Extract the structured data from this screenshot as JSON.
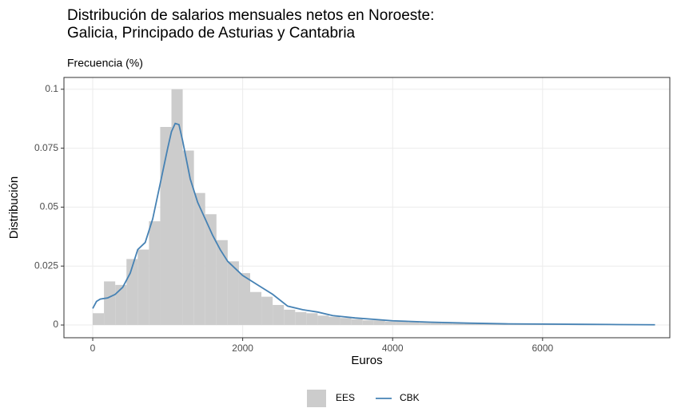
{
  "chart_data": {
    "type": "histogram",
    "title": "Distribución de salarios mensuales netos en Noroeste:",
    "title_line2": "Galicia, Principado de Asturias y Cantabria",
    "subtitle": "Frecuencia (%)",
    "x_label": "Euros",
    "y_label": "Distribución",
    "xlim": [
      -384,
      7697
    ],
    "ylim": [
      -0.0054,
      0.105
    ],
    "xticks": [
      0,
      2000,
      4000,
      6000
    ],
    "yticks": [
      0,
      0.025,
      0.05,
      0.075,
      0.1
    ],
    "grid": true,
    "legend": "bottom",
    "series": [
      {
        "name": "EES",
        "type": "histogram",
        "color": "#cccccc",
        "bins": [
          0,
          150,
          300,
          450,
          600,
          750,
          900,
          1050,
          1200,
          1350,
          1500,
          1650,
          1800,
          1950,
          2100,
          2250,
          2400,
          2550,
          2700,
          2850,
          3000,
          3150,
          3300,
          3450,
          3600,
          3750,
          3900,
          4050,
          4200,
          4350,
          4500,
          4650,
          4800,
          4950,
          5100,
          5250,
          5400,
          5550,
          5700,
          5850,
          6000,
          6150,
          6300,
          6450,
          6600,
          6750,
          6900,
          7050,
          7200,
          7350,
          7500
        ],
        "values": [
          0.005,
          0.0185,
          0.017,
          0.028,
          0.032,
          0.044,
          0.084,
          0.1,
          0.074,
          0.056,
          0.047,
          0.036,
          0.027,
          0.022,
          0.014,
          0.012,
          0.0085,
          0.0065,
          0.0055,
          0.005,
          0.004,
          0.0035,
          0.003,
          0.0025,
          0.002,
          0.002,
          0.0015,
          0.0015,
          0.0012,
          0.001,
          0.001,
          0.0008,
          0.0007,
          0.0006,
          0.0005,
          0.0005,
          0.0004,
          0.0004,
          0.0003,
          0.0003,
          0.0003,
          0.0002,
          0.0002,
          0.0002,
          0.0002,
          0.0001,
          0.0001,
          0.0001,
          0.0001,
          0.0001
        ]
      },
      {
        "name": "CBK",
        "type": "line",
        "color": "#4682b4",
        "x": [
          0,
          50,
          100,
          200,
          300,
          400,
          500,
          600,
          700,
          800,
          900,
          1000,
          1050,
          1100,
          1150,
          1200,
          1300,
          1400,
          1500,
          1600,
          1700,
          1800,
          1900,
          2000,
          2200,
          2400,
          2600,
          2800,
          3000,
          3200,
          3500,
          4000,
          4500,
          5000,
          5500,
          6000,
          6500,
          7000,
          7500
        ],
        "values": [
          0.007,
          0.01,
          0.011,
          0.0115,
          0.013,
          0.016,
          0.022,
          0.032,
          0.035,
          0.045,
          0.06,
          0.075,
          0.082,
          0.0855,
          0.085,
          0.078,
          0.062,
          0.052,
          0.045,
          0.038,
          0.032,
          0.027,
          0.024,
          0.021,
          0.017,
          0.013,
          0.008,
          0.0065,
          0.0055,
          0.004,
          0.003,
          0.0018,
          0.0012,
          0.0008,
          0.0005,
          0.0004,
          0.0003,
          0.0002,
          0.0001
        ]
      }
    ]
  }
}
